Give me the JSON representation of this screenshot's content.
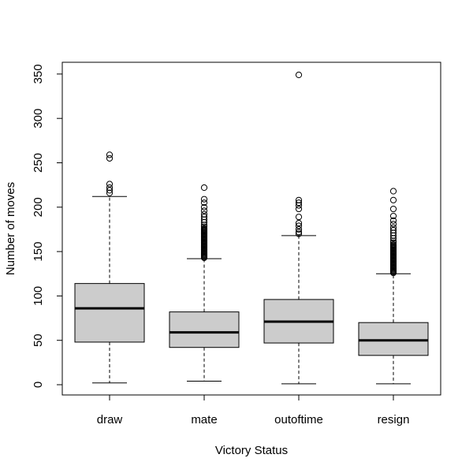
{
  "chart_data": {
    "type": "boxplot",
    "title": "",
    "xlabel": "Victory Status",
    "ylabel": "Number of moves",
    "ylim": [
      -12,
      362
    ],
    "yticks": [
      0,
      50,
      100,
      150,
      200,
      250,
      300,
      350
    ],
    "grid": false,
    "legend": "none",
    "box_fill": "#cccccc",
    "categories": [
      "draw",
      "mate",
      "outoftime",
      "resign"
    ],
    "boxes": [
      {
        "category": "draw",
        "whisker_low": 2,
        "q1": 48,
        "median": 86,
        "q3": 114,
        "whisker_high": 212,
        "outliers": [
          216,
          219,
          222,
          226,
          255,
          259
        ]
      },
      {
        "category": "mate",
        "whisker_low": 4,
        "q1": 42,
        "median": 59,
        "q3": 82,
        "whisker_high": 142,
        "outliers": [
          143,
          144,
          145,
          146,
          147,
          148,
          149,
          150,
          151,
          152,
          153,
          154,
          155,
          156,
          157,
          158,
          159,
          160,
          161,
          162,
          163,
          164,
          165,
          166,
          167,
          168,
          169,
          170,
          171,
          172,
          173,
          174,
          175,
          176,
          178,
          180,
          183,
          186,
          189,
          192,
          196,
          200,
          205,
          209,
          222
        ]
      },
      {
        "category": "outoftime",
        "whisker_low": 1,
        "q1": 47,
        "median": 71,
        "q3": 96,
        "whisker_high": 168,
        "outliers": [
          170,
          172,
          175,
          179,
          182,
          189,
          198,
          202,
          205,
          208,
          349
        ]
      },
      {
        "category": "resign",
        "whisker_low": 1,
        "q1": 33,
        "median": 50,
        "q3": 70,
        "whisker_high": 125,
        "outliers": [
          126,
          127,
          128,
          129,
          130,
          131,
          132,
          133,
          134,
          135,
          136,
          137,
          138,
          139,
          140,
          141,
          142,
          143,
          144,
          145,
          146,
          147,
          148,
          149,
          150,
          151,
          152,
          153,
          154,
          155,
          156,
          157,
          158,
          160,
          162,
          165,
          168,
          171,
          174,
          177,
          181,
          185,
          190,
          198,
          208,
          218
        ]
      }
    ]
  }
}
